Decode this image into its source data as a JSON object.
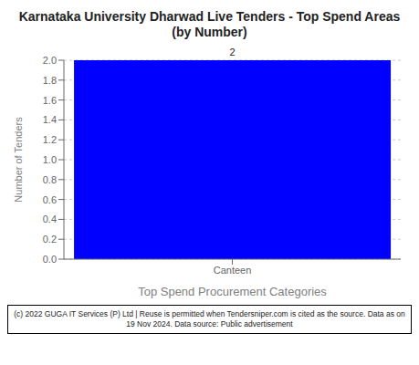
{
  "chart_data": {
    "type": "bar",
    "title": "Karnataka University Dharwad Live Tenders - Top Spend Areas (by Number)",
    "categories": [
      "Canteen"
    ],
    "values": [
      2
    ],
    "color": "#0000ff",
    "ylabel": "Number of Tenders",
    "xlabel": "Top Spend Procurement Categories",
    "ylim": [
      0,
      2.0
    ],
    "yticks": [
      {
        "value": 0.0,
        "label": "0.0"
      },
      0.2,
      0.4,
      0.6,
      0.8,
      {
        "value": 1.0,
        "label": "1.0"
      },
      1.2,
      1.4,
      1.6,
      1.8,
      {
        "value": 2.0,
        "label": "2.0"
      }
    ],
    "grid": true,
    "data_labels": true,
    "annotations": [
      "(c) 2022 GUGA IT Services (P) Ltd | Reuse is permitted when Tendersniper.com is cited as the source. Data as on 19 Nov 2024. Data source: Public advertisement"
    ]
  }
}
